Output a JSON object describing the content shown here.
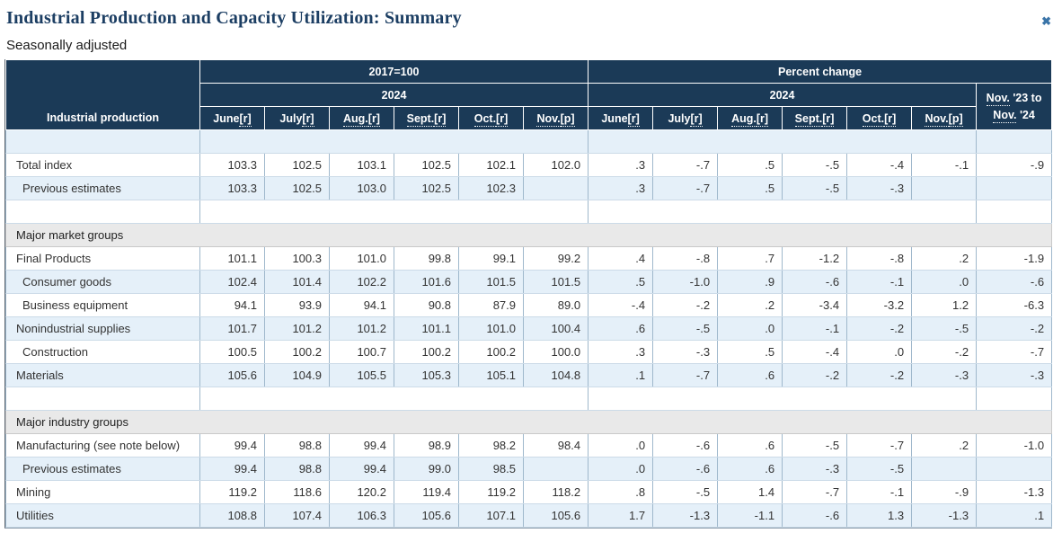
{
  "page": {
    "title": "Industrial Production and Capacity Utilization: Summary",
    "subtitle": "Seasonally adjusted",
    "close_icon": "✖"
  },
  "colors": {
    "header_navy": "#1b3a57",
    "row_blue": "#e5f0f9",
    "row_white": "#ffffff",
    "section_gray": "#e9e9e9",
    "title_blue": "#1c3e63",
    "close_blue": "#3a74a8",
    "border_vertical": "#9fb8cc",
    "border_horizontal": "#ccdbe8"
  },
  "table": {
    "corner_label": "Industrial production",
    "groups": [
      {
        "label": "2017=100",
        "year": "2024"
      },
      {
        "label": "Percent change",
        "year": "2024"
      }
    ],
    "month_headers": [
      {
        "parts": [
          {
            "t": "June",
            "u": false
          },
          {
            "t": "[r]",
            "u": true
          }
        ]
      },
      {
        "parts": [
          {
            "t": "July",
            "u": false
          },
          {
            "t": "[r]",
            "u": true
          }
        ]
      },
      {
        "parts": [
          {
            "t": "Aug.",
            "u": true
          },
          {
            "t": "[r]",
            "u": true
          }
        ]
      },
      {
        "parts": [
          {
            "t": "Sept.",
            "u": true
          },
          {
            "t": "[r]",
            "u": true
          }
        ]
      },
      {
        "parts": [
          {
            "t": "Oct.",
            "u": true
          },
          {
            "t": "[r]",
            "u": true
          }
        ]
      },
      {
        "parts": [
          {
            "t": "Nov.",
            "u": true
          },
          {
            "t": "[p]",
            "u": true
          }
        ]
      }
    ],
    "change_header": {
      "line1": [
        {
          "t": "Nov.",
          "u": true
        },
        {
          "t": " '23 to",
          "u": false
        }
      ],
      "line2": [
        {
          "t": "Nov.",
          "u": true
        },
        {
          "t": " '24",
          "u": false
        }
      ]
    },
    "rows": [
      {
        "type": "spacer"
      },
      {
        "type": "data",
        "label": "Total index",
        "indent": false,
        "index": [
          "103.3",
          "102.5",
          "103.1",
          "102.5",
          "102.1",
          "102.0"
        ],
        "pct": [
          ".3",
          "-.7",
          ".5",
          "-.5",
          "-.4",
          "-.1"
        ],
        "change": "-.9"
      },
      {
        "type": "data",
        "label": "Previous estimates",
        "indent": true,
        "index": [
          "103.3",
          "102.5",
          "103.0",
          "102.5",
          "102.3",
          ""
        ],
        "pct": [
          ".3",
          "-.7",
          ".5",
          "-.5",
          "-.3",
          ""
        ],
        "change": ""
      },
      {
        "type": "spacer"
      },
      {
        "type": "section",
        "label": "Major market groups"
      },
      {
        "type": "data",
        "label": "Final Products",
        "indent": false,
        "index": [
          "101.1",
          "100.3",
          "101.0",
          "99.8",
          "99.1",
          "99.2"
        ],
        "pct": [
          ".4",
          "-.8",
          ".7",
          "-1.2",
          "-.8",
          ".2"
        ],
        "change": "-1.9"
      },
      {
        "type": "data",
        "label": "Consumer goods",
        "indent": true,
        "index": [
          "102.4",
          "101.4",
          "102.2",
          "101.6",
          "101.5",
          "101.5"
        ],
        "pct": [
          ".5",
          "-1.0",
          ".9",
          "-.6",
          "-.1",
          ".0"
        ],
        "change": "-.6"
      },
      {
        "type": "data",
        "label": "Business equipment",
        "indent": true,
        "index": [
          "94.1",
          "93.9",
          "94.1",
          "90.8",
          "87.9",
          "89.0"
        ],
        "pct": [
          "-.4",
          "-.2",
          ".2",
          "-3.4",
          "-3.2",
          "1.2"
        ],
        "change": "-6.3"
      },
      {
        "type": "data",
        "label": "Nonindustrial supplies",
        "indent": false,
        "index": [
          "101.7",
          "101.2",
          "101.2",
          "101.1",
          "101.0",
          "100.4"
        ],
        "pct": [
          ".6",
          "-.5",
          ".0",
          "-.1",
          "-.2",
          "-.5"
        ],
        "change": "-.2"
      },
      {
        "type": "data",
        "label": "Construction",
        "indent": true,
        "index": [
          "100.5",
          "100.2",
          "100.7",
          "100.2",
          "100.2",
          "100.0"
        ],
        "pct": [
          ".3",
          "-.3",
          ".5",
          "-.4",
          ".0",
          "-.2"
        ],
        "change": "-.7"
      },
      {
        "type": "data",
        "label": "Materials",
        "indent": false,
        "index": [
          "105.6",
          "104.9",
          "105.5",
          "105.3",
          "105.1",
          "104.8"
        ],
        "pct": [
          ".1",
          "-.7",
          ".6",
          "-.2",
          "-.2",
          "-.3"
        ],
        "change": "-.3"
      },
      {
        "type": "spacer"
      },
      {
        "type": "section",
        "label": "Major industry groups"
      },
      {
        "type": "data",
        "label": "Manufacturing (see note below)",
        "indent": false,
        "index": [
          "99.4",
          "98.8",
          "99.4",
          "98.9",
          "98.2",
          "98.4"
        ],
        "pct": [
          ".0",
          "-.6",
          ".6",
          "-.5",
          "-.7",
          ".2"
        ],
        "change": "-1.0"
      },
      {
        "type": "data",
        "label": "Previous estimates",
        "indent": true,
        "index": [
          "99.4",
          "98.8",
          "99.4",
          "99.0",
          "98.5",
          ""
        ],
        "pct": [
          ".0",
          "-.6",
          ".6",
          "-.3",
          "-.5",
          ""
        ],
        "change": ""
      },
      {
        "type": "data",
        "label": "Mining",
        "indent": false,
        "index": [
          "119.2",
          "118.6",
          "120.2",
          "119.4",
          "119.2",
          "118.2"
        ],
        "pct": [
          ".8",
          "-.5",
          "1.4",
          "-.7",
          "-.1",
          "-.9"
        ],
        "change": "-1.3"
      },
      {
        "type": "data",
        "label": "Utilities",
        "indent": false,
        "index": [
          "108.8",
          "107.4",
          "106.3",
          "105.6",
          "107.1",
          "105.6"
        ],
        "pct": [
          "1.7",
          "-1.3",
          "-1.1",
          "-.6",
          "1.3",
          "-1.3"
        ],
        "change": ".1"
      }
    ]
  }
}
